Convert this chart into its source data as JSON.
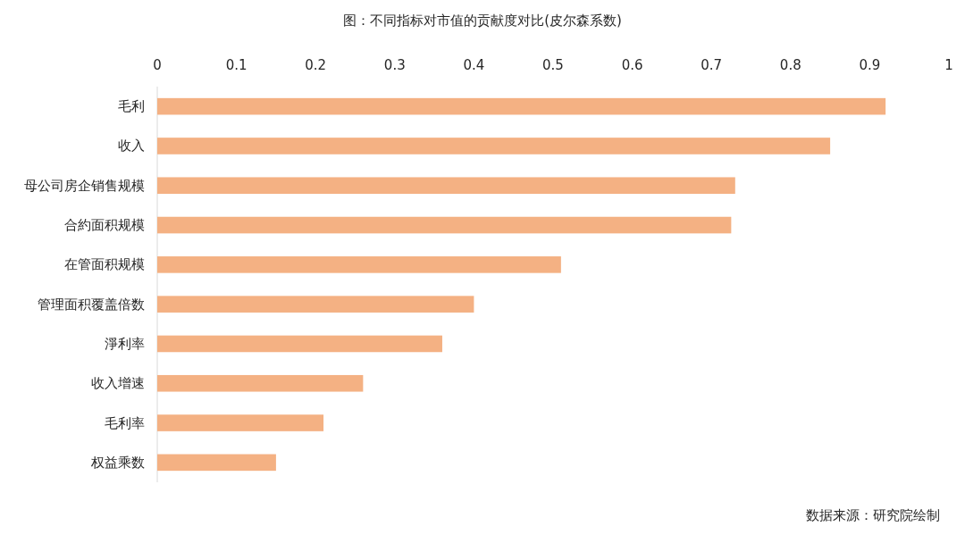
{
  "chart_data": {
    "type": "bar",
    "orientation": "horizontal",
    "title": "图：不同指标对市值的贡献度对比(皮尔森系数)",
    "categories": [
      "毛利",
      "收入",
      "母公司房企销售规模",
      "合約面积规模",
      "在管面积规模",
      "管理面积覆盖倍数",
      "淨利率",
      "收入增速",
      "毛利率",
      "权益乘数"
    ],
    "values": [
      0.92,
      0.85,
      0.73,
      0.725,
      0.51,
      0.4,
      0.36,
      0.26,
      0.21,
      0.15
    ],
    "color": "#f4b183",
    "xlim": [
      0,
      1
    ],
    "xticks": [
      0,
      0.1,
      0.2,
      0.3,
      0.4,
      0.5,
      0.6,
      0.7,
      0.8,
      0.9,
      1
    ],
    "grid": false,
    "annotations": [
      "数据来源：研究院绘制"
    ]
  }
}
